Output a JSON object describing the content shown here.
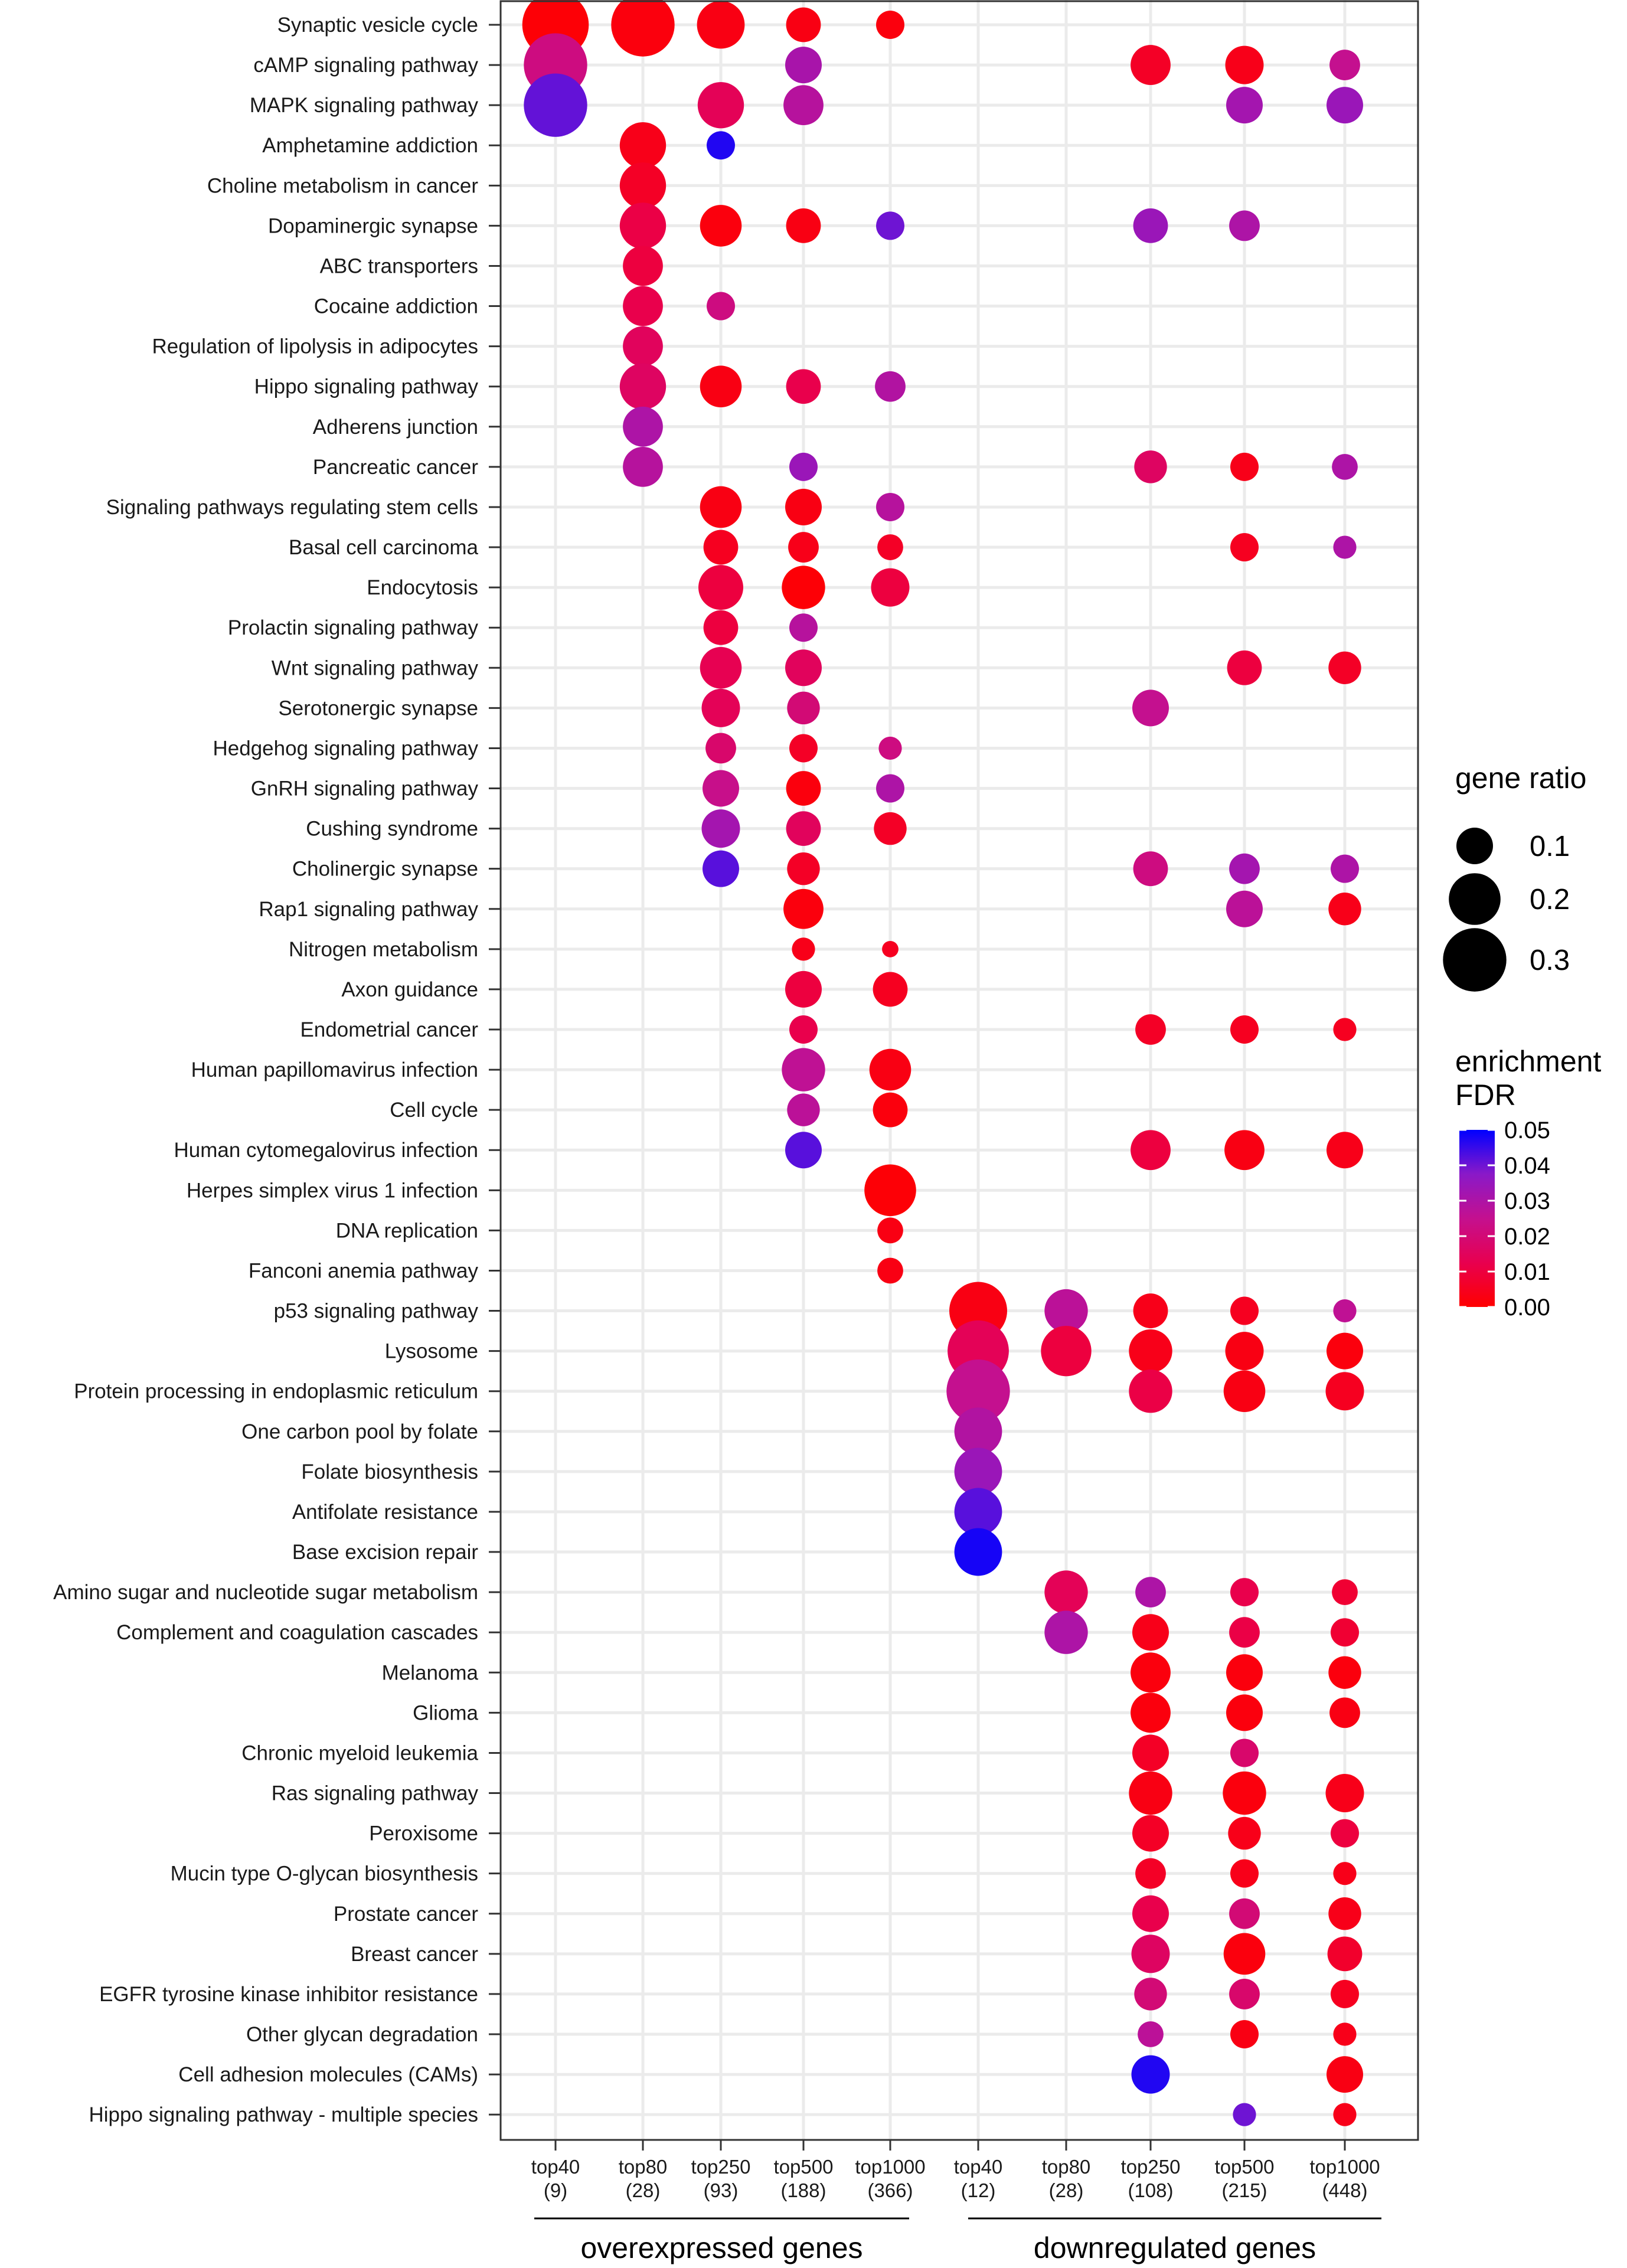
{
  "chart_data": {
    "type": "scatter",
    "subtype": "dot-plot",
    "title": "",
    "xlabel": "",
    "ylabel": "",
    "columns": [
      {
        "label": "top40",
        "count": "(9)",
        "group": "overexpressed genes"
      },
      {
        "label": "top80",
        "count": "(28)",
        "group": "overexpressed genes"
      },
      {
        "label": "top250",
        "count": "(93)",
        "group": "overexpressed genes"
      },
      {
        "label": "top500",
        "count": "(188)",
        "group": "overexpressed genes"
      },
      {
        "label": "top1000",
        "count": "(366)",
        "group": "overexpressed genes"
      },
      {
        "label": "top40",
        "count": "(12)",
        "group": "downregulated genes"
      },
      {
        "label": "top80",
        "count": "(28)",
        "group": "downregulated genes"
      },
      {
        "label": "top250",
        "count": "(108)",
        "group": "downregulated genes"
      },
      {
        "label": "top500",
        "count": "(215)",
        "group": "downregulated genes"
      },
      {
        "label": "top1000",
        "count": "(448)",
        "group": "downregulated genes"
      }
    ],
    "groups": [
      "overexpressed genes",
      "downregulated genes"
    ],
    "pathways": [
      "Synaptic vesicle cycle",
      "cAMP signaling pathway",
      "MAPK signaling pathway",
      "Amphetamine addiction",
      "Choline metabolism in cancer",
      "Dopaminergic synapse",
      "ABC transporters",
      "Cocaine addiction",
      "Regulation of lipolysis in adipocytes",
      "Hippo signaling pathway",
      "Adherens junction",
      "Pancreatic cancer",
      "Signaling pathways regulating stem cells",
      "Basal cell carcinoma",
      "Endocytosis",
      "Prolactin signaling pathway",
      "Wnt signaling pathway",
      "Serotonergic synapse",
      "Hedgehog signaling pathway",
      "GnRH signaling pathway",
      "Cushing syndrome",
      "Cholinergic synapse",
      "Rap1 signaling pathway",
      "Nitrogen metabolism",
      "Axon guidance",
      "Endometrial cancer",
      "Human papillomavirus infection",
      "Cell cycle",
      "Human cytomegalovirus infection",
      "Herpes simplex virus 1 infection",
      "DNA replication",
      "Fanconi anemia pathway",
      "p53 signaling pathway",
      "Lysosome",
      "Protein processing in endoplasmic reticulum",
      "One carbon pool by folate",
      "Folate biosynthesis",
      "Antifolate resistance",
      "Base excision repair",
      "Amino sugar and nucleotide sugar metabolism",
      "Complement and coagulation cascades",
      "Melanoma",
      "Glioma",
      "Chronic myeloid leukemia",
      "Ras signaling pathway",
      "Peroxisome",
      "Mucin type O-glycan biosynthesis",
      "Prostate cancer",
      "Breast cancer",
      "EGFR tyrosine kinase inhibitor resistance",
      "Other glycan degradation",
      "Cell adhesion molecules (CAMs)",
      "Hippo signaling pathway - multiple species"
    ],
    "points": [
      {
        "row": 0,
        "col": 0,
        "ratio": 0.33,
        "fdr": 0.001
      },
      {
        "row": 0,
        "col": 1,
        "ratio": 0.3,
        "fdr": 0.002
      },
      {
        "row": 0,
        "col": 2,
        "ratio": 0.17,
        "fdr": 0.003
      },
      {
        "row": 0,
        "col": 3,
        "ratio": 0.09,
        "fdr": 0.003
      },
      {
        "row": 0,
        "col": 4,
        "ratio": 0.06,
        "fdr": 0.002
      },
      {
        "row": 1,
        "col": 0,
        "ratio": 0.3,
        "fdr": 0.022
      },
      {
        "row": 1,
        "col": 3,
        "ratio": 0.1,
        "fdr": 0.031
      },
      {
        "row": 1,
        "col": 7,
        "ratio": 0.12,
        "fdr": 0.006
      },
      {
        "row": 1,
        "col": 8,
        "ratio": 0.11,
        "fdr": 0.004
      },
      {
        "row": 1,
        "col": 9,
        "ratio": 0.07,
        "fdr": 0.025
      },
      {
        "row": 2,
        "col": 0,
        "ratio": 0.3,
        "fdr": 0.041
      },
      {
        "row": 2,
        "col": 2,
        "ratio": 0.16,
        "fdr": 0.014
      },
      {
        "row": 2,
        "col": 3,
        "ratio": 0.12,
        "fdr": 0.028
      },
      {
        "row": 2,
        "col": 8,
        "ratio": 0.1,
        "fdr": 0.032
      },
      {
        "row": 2,
        "col": 9,
        "ratio": 0.1,
        "fdr": 0.034
      },
      {
        "row": 3,
        "col": 1,
        "ratio": 0.16,
        "fdr": 0.004
      },
      {
        "row": 3,
        "col": 2,
        "ratio": 0.06,
        "fdr": 0.047
      },
      {
        "row": 4,
        "col": 1,
        "ratio": 0.16,
        "fdr": 0.006
      },
      {
        "row": 5,
        "col": 1,
        "ratio": 0.16,
        "fdr": 0.011
      },
      {
        "row": 5,
        "col": 2,
        "ratio": 0.13,
        "fdr": 0.002
      },
      {
        "row": 5,
        "col": 3,
        "ratio": 0.09,
        "fdr": 0.003
      },
      {
        "row": 5,
        "col": 4,
        "ratio": 0.06,
        "fdr": 0.04
      },
      {
        "row": 5,
        "col": 7,
        "ratio": 0.09,
        "fdr": 0.034
      },
      {
        "row": 5,
        "col": 8,
        "ratio": 0.07,
        "fdr": 0.03
      },
      {
        "row": 6,
        "col": 1,
        "ratio": 0.12,
        "fdr": 0.01
      },
      {
        "row": 7,
        "col": 1,
        "ratio": 0.12,
        "fdr": 0.012
      },
      {
        "row": 7,
        "col": 2,
        "ratio": 0.06,
        "fdr": 0.022
      },
      {
        "row": 8,
        "col": 1,
        "ratio": 0.12,
        "fdr": 0.015
      },
      {
        "row": 9,
        "col": 1,
        "ratio": 0.16,
        "fdr": 0.016
      },
      {
        "row": 9,
        "col": 2,
        "ratio": 0.13,
        "fdr": 0.003
      },
      {
        "row": 9,
        "col": 3,
        "ratio": 0.09,
        "fdr": 0.012
      },
      {
        "row": 9,
        "col": 4,
        "ratio": 0.07,
        "fdr": 0.029
      },
      {
        "row": 10,
        "col": 1,
        "ratio": 0.12,
        "fdr": 0.03
      },
      {
        "row": 11,
        "col": 1,
        "ratio": 0.12,
        "fdr": 0.028
      },
      {
        "row": 11,
        "col": 3,
        "ratio": 0.06,
        "fdr": 0.034
      },
      {
        "row": 11,
        "col": 7,
        "ratio": 0.08,
        "fdr": 0.016
      },
      {
        "row": 11,
        "col": 8,
        "ratio": 0.06,
        "fdr": 0.004
      },
      {
        "row": 11,
        "col": 9,
        "ratio": 0.05,
        "fdr": 0.03
      },
      {
        "row": 12,
        "col": 2,
        "ratio": 0.13,
        "fdr": 0.003
      },
      {
        "row": 12,
        "col": 3,
        "ratio": 0.1,
        "fdr": 0.003
      },
      {
        "row": 12,
        "col": 4,
        "ratio": 0.06,
        "fdr": 0.028
      },
      {
        "row": 13,
        "col": 2,
        "ratio": 0.09,
        "fdr": 0.005
      },
      {
        "row": 13,
        "col": 3,
        "ratio": 0.07,
        "fdr": 0.004
      },
      {
        "row": 13,
        "col": 4,
        "ratio": 0.05,
        "fdr": 0.006
      },
      {
        "row": 13,
        "col": 8,
        "ratio": 0.06,
        "fdr": 0.005
      },
      {
        "row": 13,
        "col": 9,
        "ratio": 0.04,
        "fdr": 0.03
      },
      {
        "row": 14,
        "col": 2,
        "ratio": 0.15,
        "fdr": 0.01
      },
      {
        "row": 14,
        "col": 3,
        "ratio": 0.14,
        "fdr": 0.001
      },
      {
        "row": 14,
        "col": 4,
        "ratio": 0.11,
        "fdr": 0.01
      },
      {
        "row": 15,
        "col": 2,
        "ratio": 0.09,
        "fdr": 0.01
      },
      {
        "row": 15,
        "col": 3,
        "ratio": 0.06,
        "fdr": 0.028
      },
      {
        "row": 16,
        "col": 2,
        "ratio": 0.13,
        "fdr": 0.013
      },
      {
        "row": 16,
        "col": 3,
        "ratio": 0.1,
        "fdr": 0.015
      },
      {
        "row": 16,
        "col": 8,
        "ratio": 0.09,
        "fdr": 0.01
      },
      {
        "row": 16,
        "col": 9,
        "ratio": 0.08,
        "fdr": 0.006
      },
      {
        "row": 17,
        "col": 2,
        "ratio": 0.11,
        "fdr": 0.014
      },
      {
        "row": 17,
        "col": 3,
        "ratio": 0.08,
        "fdr": 0.02
      },
      {
        "row": 17,
        "col": 7,
        "ratio": 0.1,
        "fdr": 0.025
      },
      {
        "row": 18,
        "col": 2,
        "ratio": 0.07,
        "fdr": 0.018
      },
      {
        "row": 18,
        "col": 3,
        "ratio": 0.06,
        "fdr": 0.006
      },
      {
        "row": 18,
        "col": 4,
        "ratio": 0.04,
        "fdr": 0.022
      },
      {
        "row": 19,
        "col": 2,
        "ratio": 0.1,
        "fdr": 0.024
      },
      {
        "row": 19,
        "col": 3,
        "ratio": 0.09,
        "fdr": 0.002
      },
      {
        "row": 19,
        "col": 4,
        "ratio": 0.06,
        "fdr": 0.03
      },
      {
        "row": 20,
        "col": 2,
        "ratio": 0.11,
        "fdr": 0.032
      },
      {
        "row": 20,
        "col": 3,
        "ratio": 0.09,
        "fdr": 0.015
      },
      {
        "row": 20,
        "col": 4,
        "ratio": 0.08,
        "fdr": 0.006
      },
      {
        "row": 21,
        "col": 2,
        "ratio": 0.1,
        "fdr": 0.042
      },
      {
        "row": 21,
        "col": 3,
        "ratio": 0.08,
        "fdr": 0.006
      },
      {
        "row": 21,
        "col": 7,
        "ratio": 0.09,
        "fdr": 0.022
      },
      {
        "row": 21,
        "col": 8,
        "ratio": 0.07,
        "fdr": 0.032
      },
      {
        "row": 21,
        "col": 9,
        "ratio": 0.06,
        "fdr": 0.03
      },
      {
        "row": 22,
        "col": 3,
        "ratio": 0.12,
        "fdr": 0.002
      },
      {
        "row": 22,
        "col": 8,
        "ratio": 0.1,
        "fdr": 0.027
      },
      {
        "row": 22,
        "col": 9,
        "ratio": 0.08,
        "fdr": 0.004
      },
      {
        "row": 23,
        "col": 3,
        "ratio": 0.04,
        "fdr": 0.004
      },
      {
        "row": 23,
        "col": 4,
        "ratio": 0.02,
        "fdr": 0.005
      },
      {
        "row": 24,
        "col": 3,
        "ratio": 0.1,
        "fdr": 0.01
      },
      {
        "row": 24,
        "col": 4,
        "ratio": 0.09,
        "fdr": 0.005
      },
      {
        "row": 25,
        "col": 3,
        "ratio": 0.06,
        "fdr": 0.012
      },
      {
        "row": 25,
        "col": 7,
        "ratio": 0.07,
        "fdr": 0.006
      },
      {
        "row": 25,
        "col": 8,
        "ratio": 0.06,
        "fdr": 0.005
      },
      {
        "row": 25,
        "col": 9,
        "ratio": 0.04,
        "fdr": 0.005
      },
      {
        "row": 26,
        "col": 3,
        "ratio": 0.14,
        "fdr": 0.026
      },
      {
        "row": 26,
        "col": 4,
        "ratio": 0.13,
        "fdr": 0.003
      },
      {
        "row": 27,
        "col": 3,
        "ratio": 0.08,
        "fdr": 0.027
      },
      {
        "row": 27,
        "col": 4,
        "ratio": 0.09,
        "fdr": 0.002
      },
      {
        "row": 28,
        "col": 3,
        "ratio": 0.1,
        "fdr": 0.042
      },
      {
        "row": 28,
        "col": 7,
        "ratio": 0.12,
        "fdr": 0.01
      },
      {
        "row": 28,
        "col": 8,
        "ratio": 0.12,
        "fdr": 0.003
      },
      {
        "row": 28,
        "col": 9,
        "ratio": 0.1,
        "fdr": 0.004
      },
      {
        "row": 29,
        "col": 4,
        "ratio": 0.2,
        "fdr": 0.001
      },
      {
        "row": 30,
        "col": 4,
        "ratio": 0.05,
        "fdr": 0.003
      },
      {
        "row": 31,
        "col": 4,
        "ratio": 0.05,
        "fdr": 0.003
      },
      {
        "row": 32,
        "col": 5,
        "ratio": 0.25,
        "fdr": 0.003
      },
      {
        "row": 32,
        "col": 6,
        "ratio": 0.14,
        "fdr": 0.027
      },
      {
        "row": 32,
        "col": 7,
        "ratio": 0.09,
        "fdr": 0.004
      },
      {
        "row": 32,
        "col": 8,
        "ratio": 0.06,
        "fdr": 0.005
      },
      {
        "row": 32,
        "col": 9,
        "ratio": 0.04,
        "fdr": 0.026
      },
      {
        "row": 33,
        "col": 5,
        "ratio": 0.28,
        "fdr": 0.014
      },
      {
        "row": 33,
        "col": 6,
        "ratio": 0.19,
        "fdr": 0.01
      },
      {
        "row": 33,
        "col": 7,
        "ratio": 0.14,
        "fdr": 0.004
      },
      {
        "row": 33,
        "col": 8,
        "ratio": 0.11,
        "fdr": 0.003
      },
      {
        "row": 33,
        "col": 9,
        "ratio": 0.1,
        "fdr": 0.002
      },
      {
        "row": 34,
        "col": 5,
        "ratio": 0.3,
        "fdr": 0.025
      },
      {
        "row": 34,
        "col": 7,
        "ratio": 0.14,
        "fdr": 0.011
      },
      {
        "row": 34,
        "col": 8,
        "ratio": 0.13,
        "fdr": 0.003
      },
      {
        "row": 34,
        "col": 9,
        "ratio": 0.11,
        "fdr": 0.005
      },
      {
        "row": 35,
        "col": 5,
        "ratio": 0.17,
        "fdr": 0.029
      },
      {
        "row": 36,
        "col": 5,
        "ratio": 0.17,
        "fdr": 0.034
      },
      {
        "row": 37,
        "col": 5,
        "ratio": 0.17,
        "fdr": 0.042
      },
      {
        "row": 38,
        "col": 5,
        "ratio": 0.17,
        "fdr": 0.048
      },
      {
        "row": 39,
        "col": 6,
        "ratio": 0.14,
        "fdr": 0.014
      },
      {
        "row": 39,
        "col": 7,
        "ratio": 0.07,
        "fdr": 0.03
      },
      {
        "row": 39,
        "col": 8,
        "ratio": 0.06,
        "fdr": 0.012
      },
      {
        "row": 39,
        "col": 9,
        "ratio": 0.05,
        "fdr": 0.008
      },
      {
        "row": 40,
        "col": 6,
        "ratio": 0.14,
        "fdr": 0.03
      },
      {
        "row": 40,
        "col": 7,
        "ratio": 0.1,
        "fdr": 0.004
      },
      {
        "row": 40,
        "col": 8,
        "ratio": 0.07,
        "fdr": 0.011
      },
      {
        "row": 40,
        "col": 9,
        "ratio": 0.06,
        "fdr": 0.008
      },
      {
        "row": 41,
        "col": 7,
        "ratio": 0.12,
        "fdr": 0.002
      },
      {
        "row": 41,
        "col": 8,
        "ratio": 0.1,
        "fdr": 0.002
      },
      {
        "row": 41,
        "col": 9,
        "ratio": 0.08,
        "fdr": 0.002
      },
      {
        "row": 42,
        "col": 7,
        "ratio": 0.12,
        "fdr": 0.002
      },
      {
        "row": 42,
        "col": 8,
        "ratio": 0.1,
        "fdr": 0.002
      },
      {
        "row": 42,
        "col": 9,
        "ratio": 0.07,
        "fdr": 0.003
      },
      {
        "row": 43,
        "col": 7,
        "ratio": 0.1,
        "fdr": 0.006
      },
      {
        "row": 43,
        "col": 8,
        "ratio": 0.06,
        "fdr": 0.018
      },
      {
        "row": 44,
        "col": 7,
        "ratio": 0.14,
        "fdr": 0.003
      },
      {
        "row": 44,
        "col": 8,
        "ratio": 0.14,
        "fdr": 0.002
      },
      {
        "row": 44,
        "col": 9,
        "ratio": 0.11,
        "fdr": 0.004
      },
      {
        "row": 45,
        "col": 7,
        "ratio": 0.1,
        "fdr": 0.006
      },
      {
        "row": 45,
        "col": 8,
        "ratio": 0.08,
        "fdr": 0.004
      },
      {
        "row": 45,
        "col": 9,
        "ratio": 0.06,
        "fdr": 0.01
      },
      {
        "row": 46,
        "col": 7,
        "ratio": 0.07,
        "fdr": 0.006
      },
      {
        "row": 46,
        "col": 8,
        "ratio": 0.06,
        "fdr": 0.004
      },
      {
        "row": 46,
        "col": 9,
        "ratio": 0.04,
        "fdr": 0.004
      },
      {
        "row": 47,
        "col": 7,
        "ratio": 0.1,
        "fdr": 0.012
      },
      {
        "row": 47,
        "col": 8,
        "ratio": 0.07,
        "fdr": 0.02
      },
      {
        "row": 47,
        "col": 9,
        "ratio": 0.08,
        "fdr": 0.004
      },
      {
        "row": 48,
        "col": 7,
        "ratio": 0.11,
        "fdr": 0.016
      },
      {
        "row": 48,
        "col": 8,
        "ratio": 0.13,
        "fdr": 0.002
      },
      {
        "row": 48,
        "col": 9,
        "ratio": 0.09,
        "fdr": 0.007
      },
      {
        "row": 49,
        "col": 7,
        "ratio": 0.08,
        "fdr": 0.02
      },
      {
        "row": 49,
        "col": 8,
        "ratio": 0.07,
        "fdr": 0.018
      },
      {
        "row": 49,
        "col": 9,
        "ratio": 0.06,
        "fdr": 0.005
      },
      {
        "row": 50,
        "col": 7,
        "ratio": 0.05,
        "fdr": 0.027
      },
      {
        "row": 50,
        "col": 8,
        "ratio": 0.06,
        "fdr": 0.003
      },
      {
        "row": 50,
        "col": 9,
        "ratio": 0.04,
        "fdr": 0.004
      },
      {
        "row": 51,
        "col": 7,
        "ratio": 0.11,
        "fdr": 0.047
      },
      {
        "row": 51,
        "col": 9,
        "ratio": 0.1,
        "fdr": 0.003
      },
      {
        "row": 52,
        "col": 8,
        "ratio": 0.04,
        "fdr": 0.04
      },
      {
        "row": 52,
        "col": 9,
        "ratio": 0.04,
        "fdr": 0.004
      }
    ],
    "size_legend": {
      "title": "gene ratio",
      "values": [
        0.1,
        0.2,
        0.3
      ],
      "labels": [
        "0.1",
        "0.2",
        "0.3"
      ]
    },
    "color_legend": {
      "title_line1": "enrichment",
      "title_line2": "FDR",
      "range": [
        0.0,
        0.05
      ],
      "ticks": [
        "0.05",
        "0.04",
        "0.03",
        "0.02",
        "0.01",
        "0.00"
      ],
      "colors": {
        "low": "#ff0000",
        "mid": "#b818c0",
        "high": "#0000ff"
      }
    },
    "grid": true
  }
}
